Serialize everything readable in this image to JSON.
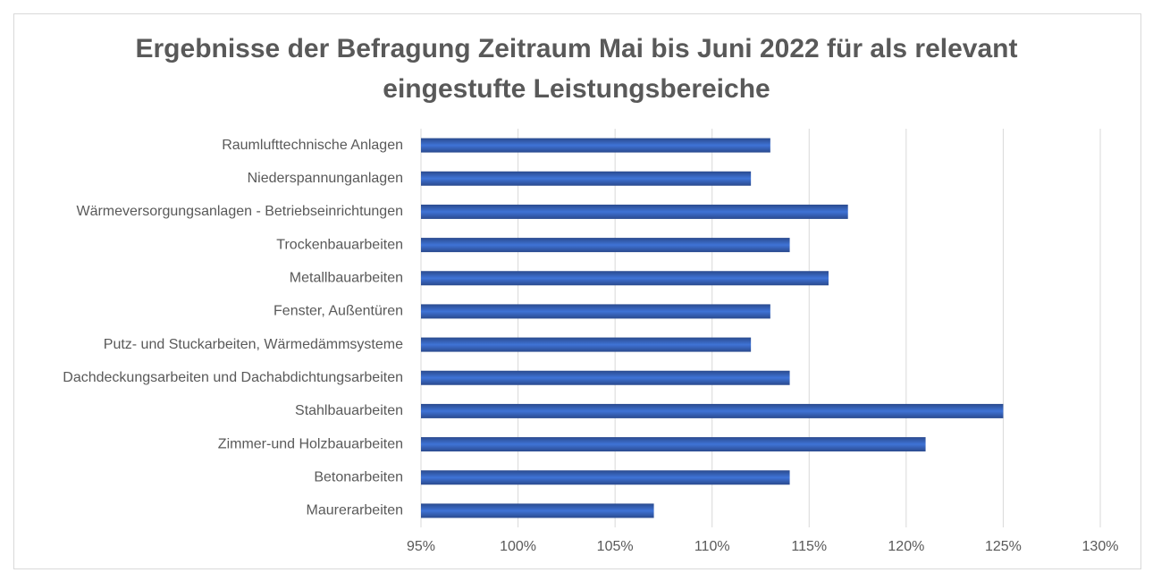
{
  "chart_data": {
    "type": "bar",
    "orientation": "horizontal",
    "title": "Ergebnisse der Befragung Zeitraum Mai bis Juni 2022 für als relevant eingestufte Leistungsbereiche",
    "categories": [
      "Raumlufttechnische Anlagen",
      "Niederspannunganlagen",
      "Wärmeversorgungsanlagen - Betriebseinrichtungen",
      "Trockenbauarbeiten",
      "Metallbauarbeiten",
      "Fenster, Außentüren",
      "Putz- und Stuckarbeiten, Wärmedämmsysteme",
      "Dachdeckungsarbeiten und Dachabdichtungsarbeiten",
      "Stahlbauarbeiten",
      "Zimmer-und Holzbauarbeiten",
      "Betonarbeiten",
      "Maurerarbeiten"
    ],
    "values": [
      113,
      112,
      117,
      114,
      116,
      113,
      112,
      114,
      125,
      121,
      114,
      107
    ],
    "color": "#3a66c4",
    "xlim": [
      95,
      130
    ],
    "xticks": [
      {
        "value": 95,
        "label": "95%"
      },
      {
        "value": 100,
        "label": "100%"
      },
      {
        "value": 105,
        "label": "105%"
      },
      {
        "value": 110,
        "label": "110%"
      },
      {
        "value": 115,
        "label": "115%"
      },
      {
        "value": 120,
        "label": "120%"
      },
      {
        "value": 125,
        "label": "125%"
      },
      {
        "value": 130,
        "label": "130%"
      }
    ],
    "grid": true
  }
}
